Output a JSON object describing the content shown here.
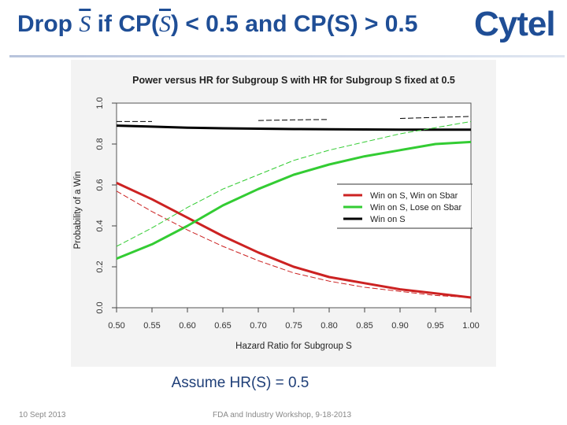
{
  "slide": {
    "title_part1": "Drop ",
    "title_s1": "S",
    "title_part2": " if CP(",
    "title_s2": "S",
    "title_part3": ") < 0.5 and CP(S) > 0.5",
    "logo": "Cytel",
    "assumption": "Assume HR(S) = 0.5",
    "footer_date": "10 Sept 2013",
    "footer_event": "FDA and Industry Workshop, 9-18-2013"
  },
  "chart_data": {
    "type": "line",
    "title": "Power versus HR for Subgroup S with HR for Subgroup S fixed at 0.5",
    "xlabel": "Hazard Ratio for Subgroup S",
    "ylabel": "Probability of a Win",
    "xlim": [
      0.5,
      1.0
    ],
    "ylim": [
      0.0,
      1.0
    ],
    "x_ticks": [
      "0.50",
      "0.55",
      "0.60",
      "0.65",
      "0.70",
      "0.75",
      "0.80",
      "0.85",
      "0.90",
      "0.95",
      "1.00"
    ],
    "y_ticks": [
      "0.0",
      "0.2",
      "0.4",
      "0.6",
      "0.8",
      "1.0"
    ],
    "legend_position": "right",
    "x": [
      0.5,
      0.55,
      0.6,
      0.65,
      0.7,
      0.75,
      0.8,
      0.85,
      0.9,
      0.95,
      1.0
    ],
    "series": [
      {
        "name": "Win on S, Win on Sbar",
        "color": "#cc2222",
        "style": "solid",
        "values": [
          0.61,
          0.53,
          0.44,
          0.35,
          0.27,
          0.2,
          0.15,
          0.12,
          0.09,
          0.07,
          0.05
        ]
      },
      {
        "name": "Win on S, Lose on Sbar",
        "color": "#33cc33",
        "style": "solid",
        "values": [
          0.24,
          0.31,
          0.4,
          0.5,
          0.58,
          0.65,
          0.7,
          0.74,
          0.77,
          0.8,
          0.81
        ]
      },
      {
        "name": "Win on S",
        "color": "#000000",
        "style": "solid",
        "values": [
          0.89,
          0.885,
          0.88,
          0.877,
          0.875,
          0.873,
          0.872,
          0.871,
          0.87,
          0.87,
          0.87
        ]
      },
      {
        "name": "",
        "color": "#cc2222",
        "style": "dashed",
        "values": [
          0.57,
          0.47,
          0.38,
          0.3,
          0.23,
          0.17,
          0.13,
          0.1,
          0.08,
          0.06,
          0.05
        ]
      },
      {
        "name": "",
        "color": "#33cc33",
        "style": "dashed",
        "values": [
          0.3,
          0.39,
          0.49,
          0.58,
          0.65,
          0.72,
          0.77,
          0.81,
          0.85,
          0.88,
          0.91
        ]
      },
      {
        "name": "",
        "color": "#000000",
        "style": "dashed",
        "values": [
          0.91,
          0.91,
          null,
          null,
          0.915,
          0.918,
          0.92,
          null,
          0.925,
          0.93,
          0.935
        ]
      }
    ]
  }
}
